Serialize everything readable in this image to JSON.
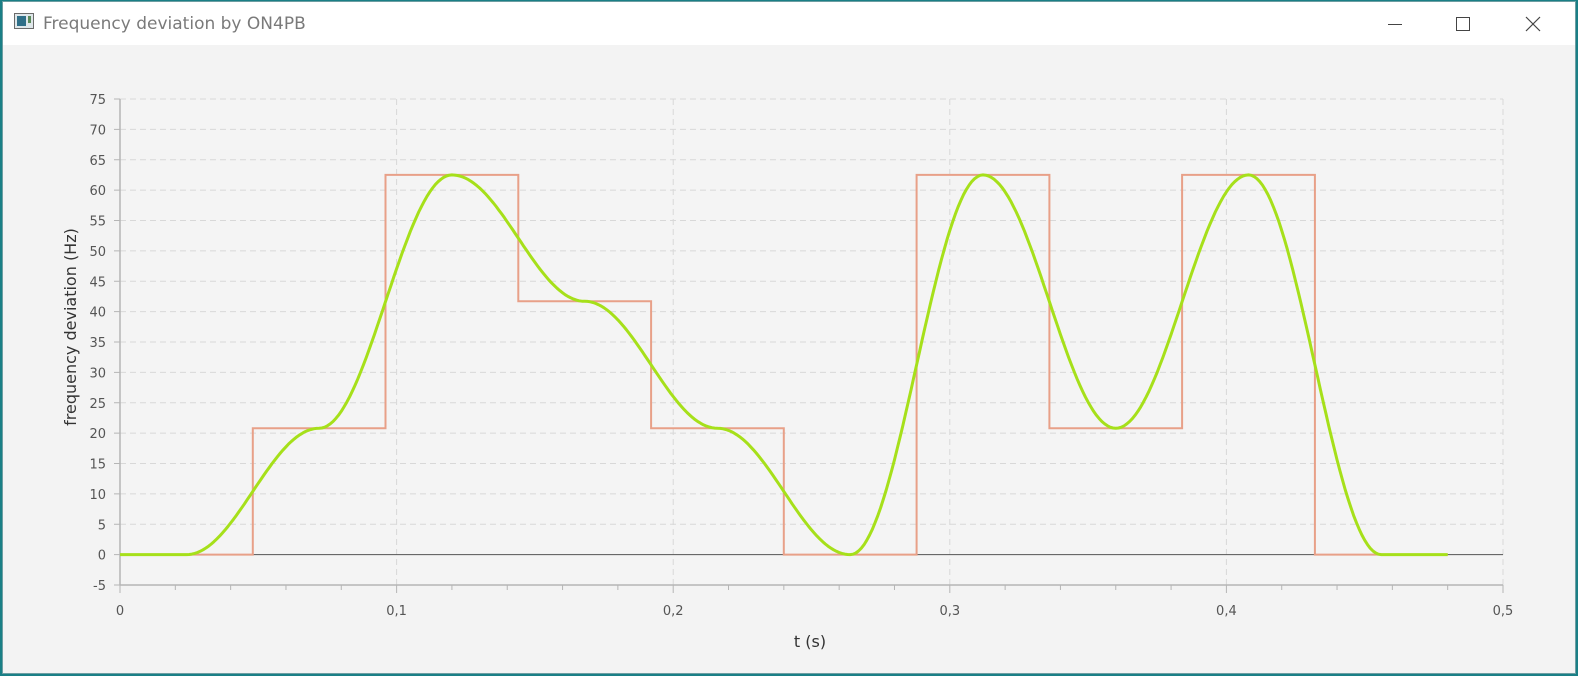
{
  "window": {
    "title": "Frequency deviation by ON4PB",
    "controls": [
      "minimize",
      "maximize",
      "close"
    ]
  },
  "chart_data": {
    "type": "line",
    "title": "",
    "xlabel": "t (s)",
    "ylabel": "frequency deviation (Hz)",
    "xlim": [
      0,
      0.5
    ],
    "ylim": [
      -5,
      75
    ],
    "x_ticks": [
      "0",
      "0,1",
      "0,2",
      "0,3",
      "0,4",
      "0,5"
    ],
    "y_ticks": [
      "-5",
      "0",
      "5",
      "10",
      "15",
      "20",
      "25",
      "30",
      "35",
      "40",
      "45",
      "50",
      "55",
      "60",
      "65",
      "70",
      "75"
    ],
    "grid": true,
    "legend": "none",
    "series": [
      {
        "color": "#e8a088",
        "style": "step",
        "x": [
          0,
          0.048,
          0.048,
          0.096,
          0.096,
          0.144,
          0.144,
          0.192,
          0.192,
          0.24,
          0.24,
          0.288,
          0.288,
          0.336,
          0.336,
          0.384,
          0.384,
          0.432,
          0.432,
          0.48
        ],
        "y": [
          0,
          0,
          20.8,
          20.8,
          62.5,
          62.5,
          41.7,
          41.7,
          20.8,
          20.8,
          0,
          0,
          62.5,
          62.5,
          20.8,
          20.8,
          62.5,
          62.5,
          0,
          0
        ]
      },
      {
        "color": "#a6e01a",
        "style": "smooth",
        "x": [
          0,
          0.024,
          0.048,
          0.072,
          0.096,
          0.12,
          0.144,
          0.168,
          0.192,
          0.216,
          0.24,
          0.264,
          0.288,
          0.312,
          0.336,
          0.36,
          0.384,
          0.408,
          0.432,
          0.456,
          0.48
        ],
        "y": [
          0,
          0,
          10.4,
          20.8,
          41.7,
          62.5,
          52.1,
          41.7,
          31.3,
          20.8,
          10.4,
          0,
          31.3,
          62.5,
          41.7,
          20.8,
          41.7,
          62.5,
          31.3,
          0,
          0
        ]
      }
    ]
  }
}
